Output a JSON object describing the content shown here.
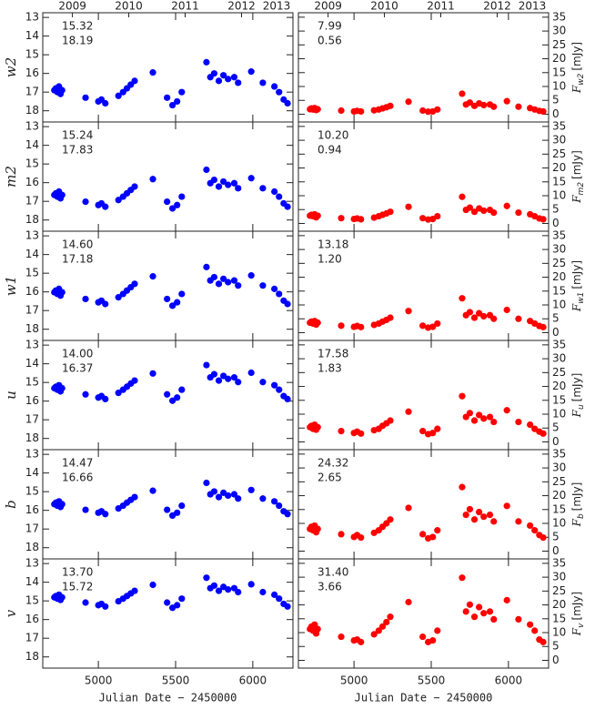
{
  "chart_data": [
    {
      "type": "scatter",
      "ylabel": "w2",
      "annotations": [
        "15.32",
        "18.19"
      ],
      "color": "#0000ff",
      "x2ticks": [
        {
          "value": 4832,
          "label": "2009"
        },
        {
          "value": 5197,
          "label": "2010"
        },
        {
          "value": 5562,
          "label": "2011"
        },
        {
          "value": 5927,
          "label": "2012"
        },
        {
          "value": 6293,
          "label": "2013"
        }
      ],
      "xlim": [
        4640,
        6260
      ],
      "xticks": [
        5000,
        5500,
        6000
      ],
      "ylim": [
        18.6,
        12.75
      ],
      "yticks": [
        13,
        14,
        15,
        16,
        17,
        18
      ],
      "x": [
        4715,
        4725,
        4735,
        4745,
        4755,
        4765,
        4917,
        5000,
        5020,
        5045,
        5130,
        5160,
        5185,
        5210,
        5235,
        5353,
        5445,
        5480,
        5510,
        5540,
        5700,
        5725,
        5750,
        5780,
        5810,
        5840,
        5880,
        5905,
        5990,
        6065,
        6140,
        6170,
        6200,
        6225
      ],
      "values": [
        16.9,
        16.8,
        17.0,
        16.7,
        17.1,
        16.9,
        17.3,
        17.5,
        17.4,
        17.6,
        17.2,
        17.0,
        16.8,
        16.6,
        16.4,
        15.95,
        17.3,
        17.7,
        17.5,
        17.0,
        15.4,
        16.2,
        16.0,
        16.4,
        16.1,
        16.3,
        16.2,
        16.5,
        15.9,
        16.5,
        16.7,
        17.0,
        17.4,
        17.6
      ]
    },
    {
      "type": "scatter",
      "ylabel": {
        "symbol": "F",
        "subscript": "w2",
        "unit": "[mJy]"
      },
      "annotations": [
        "7.99",
        "0.56"
      ],
      "color": "#ff0000",
      "x2ticks": [
        {
          "value": 4832,
          "label": "2009"
        },
        {
          "value": 5197,
          "label": "2010"
        },
        {
          "value": 5562,
          "label": "2011"
        },
        {
          "value": 5927,
          "label": "2012"
        },
        {
          "value": 6293,
          "label": "2013"
        }
      ],
      "xlim": [
        4640,
        6260
      ],
      "xticks": [
        5000,
        5500,
        6000
      ],
      "ylim": [
        -2.8,
        36.6
      ],
      "yticks": [
        0,
        5,
        10,
        15,
        20,
        25,
        30,
        35
      ],
      "x": [
        4715,
        4725,
        4735,
        4745,
        4755,
        4765,
        4917,
        5000,
        5020,
        5045,
        5130,
        5160,
        5185,
        5210,
        5235,
        5353,
        5445,
        5480,
        5510,
        5540,
        5700,
        5725,
        5750,
        5780,
        5810,
        5840,
        5880,
        5905,
        5990,
        6065,
        6140,
        6170,
        6200,
        6225
      ],
      "values": [
        1.8,
        2.1,
        1.7,
        2.2,
        1.5,
        1.8,
        1.3,
        1.0,
        1.2,
        1.0,
        1.4,
        1.7,
        2.1,
        2.5,
        3.0,
        4.5,
        1.3,
        0.9,
        1.0,
        1.7,
        7.4,
        3.5,
        4.2,
        3.0,
        3.9,
        3.3,
        3.5,
        2.7,
        4.7,
        2.7,
        2.2,
        1.7,
        1.2,
        1.0
      ]
    },
    {
      "type": "scatter",
      "ylabel": "m2",
      "annotations": [
        "15.24",
        "17.83"
      ],
      "color": "#0000ff",
      "xlim": [
        4640,
        6260
      ],
      "xticks": [
        5000,
        5500,
        6000
      ],
      "ylim": [
        18.6,
        12.75
      ],
      "yticks": [
        13,
        14,
        15,
        16,
        17,
        18
      ],
      "x": [
        4715,
        4725,
        4735,
        4745,
        4755,
        4765,
        4917,
        5000,
        5020,
        5045,
        5130,
        5160,
        5185,
        5210,
        5235,
        5353,
        5445,
        5480,
        5510,
        5540,
        5700,
        5725,
        5750,
        5780,
        5810,
        5840,
        5880,
        5905,
        5990,
        6065,
        6140,
        6170,
        6200,
        6225
      ],
      "values": [
        16.66,
        16.57,
        16.75,
        16.48,
        16.84,
        16.66,
        17.02,
        17.2,
        17.11,
        17.29,
        16.93,
        16.75,
        16.57,
        16.39,
        16.21,
        15.81,
        17.02,
        17.38,
        17.2,
        16.75,
        15.31,
        16.03,
        15.85,
        16.21,
        15.94,
        16.12,
        16.03,
        16.3,
        15.76,
        16.3,
        16.48,
        16.75,
        17.11,
        17.29
      ]
    },
    {
      "type": "scatter",
      "ylabel": {
        "symbol": "F",
        "subscript": "m2",
        "unit": "[mJy]"
      },
      "annotations": [
        "10.20",
        "0.94"
      ],
      "color": "#ff0000",
      "xlim": [
        4640,
        6260
      ],
      "xticks": [
        5000,
        5500,
        6000
      ],
      "ylim": [
        -2.8,
        36.6
      ],
      "yticks": [
        0,
        5,
        10,
        15,
        20,
        25,
        30,
        35
      ],
      "x": [
        4715,
        4725,
        4735,
        4745,
        4755,
        4765,
        4917,
        5000,
        5020,
        5045,
        5130,
        5160,
        5185,
        5210,
        5235,
        5353,
        5445,
        5480,
        5510,
        5540,
        5700,
        5725,
        5750,
        5780,
        5810,
        5840,
        5880,
        5905,
        5990,
        6065,
        6140,
        6170,
        6200,
        6225
      ],
      "values": [
        2.8,
        3.1,
        2.6,
        3.3,
        2.2,
        2.8,
        1.9,
        1.6,
        1.8,
        1.5,
        2.1,
        2.6,
        3.1,
        3.6,
        4.2,
        6.0,
        1.9,
        1.4,
        1.6,
        2.6,
        9.6,
        4.9,
        5.7,
        4.2,
        5.4,
        4.6,
        4.9,
        3.9,
        6.3,
        3.9,
        3.3,
        2.6,
        1.8,
        1.5
      ]
    },
    {
      "type": "scatter",
      "ylabel": "w1",
      "annotations": [
        "14.60",
        "17.18"
      ],
      "color": "#0000ff",
      "xlim": [
        4640,
        6260
      ],
      "xticks": [
        5000,
        5500,
        6000
      ],
      "ylim": [
        18.6,
        12.75
      ],
      "yticks": [
        13,
        14,
        15,
        16,
        17,
        18
      ],
      "x": [
        4715,
        4725,
        4735,
        4745,
        4755,
        4765,
        4917,
        5000,
        5020,
        5045,
        5130,
        5160,
        5185,
        5210,
        5235,
        5353,
        5445,
        5480,
        5510,
        5540,
        5700,
        5725,
        5750,
        5780,
        5810,
        5840,
        5880,
        5905,
        5990,
        6065,
        6140,
        6170,
        6200,
        6225
      ],
      "values": [
        16.02,
        15.93,
        16.11,
        15.84,
        16.2,
        16.02,
        16.38,
        16.56,
        16.47,
        16.65,
        16.29,
        16.11,
        15.93,
        15.75,
        15.57,
        15.17,
        16.38,
        16.74,
        16.56,
        16.11,
        14.67,
        15.39,
        15.21,
        15.57,
        15.3,
        15.48,
        15.39,
        15.66,
        15.12,
        15.66,
        15.84,
        16.11,
        16.47,
        16.65
      ]
    },
    {
      "type": "scatter",
      "ylabel": {
        "symbol": "F",
        "subscript": "w1",
        "unit": "[mJy]"
      },
      "annotations": [
        "13.18",
        "1.20"
      ],
      "color": "#ff0000",
      "xlim": [
        4640,
        6260
      ],
      "xticks": [
        5000,
        5500,
        6000
      ],
      "ylim": [
        -2.8,
        36.6
      ],
      "yticks": [
        0,
        5,
        10,
        15,
        20,
        25,
        30,
        35
      ],
      "x": [
        4715,
        4725,
        4735,
        4745,
        4755,
        4765,
        4917,
        5000,
        5020,
        5045,
        5130,
        5160,
        5185,
        5210,
        5235,
        5353,
        5445,
        5480,
        5510,
        5540,
        5700,
        5725,
        5750,
        5780,
        5810,
        5840,
        5880,
        5905,
        5990,
        6065,
        6140,
        6170,
        6200,
        6225
      ],
      "values": [
        3.6,
        4.0,
        3.3,
        4.2,
        2.9,
        3.6,
        2.5,
        2.1,
        2.4,
        2.0,
        2.8,
        3.3,
        4.0,
        4.6,
        5.4,
        7.8,
        2.5,
        1.8,
        2.1,
        3.3,
        12.4,
        6.3,
        7.4,
        5.4,
        7.0,
        5.9,
        6.3,
        5.0,
        8.2,
        5.0,
        4.2,
        3.3,
        2.4,
        2.0
      ]
    },
    {
      "type": "scatter",
      "ylabel": "u",
      "annotations": [
        "14.00",
        "16.37"
      ],
      "color": "#0000ff",
      "xlim": [
        4640,
        6260
      ],
      "xticks": [
        5000,
        5500,
        6000
      ],
      "ylim": [
        18.6,
        12.75
      ],
      "yticks": [
        13,
        14,
        15,
        16,
        17,
        18
      ],
      "x": [
        4715,
        4725,
        4735,
        4745,
        4755,
        4765,
        4917,
        5000,
        5020,
        5045,
        5130,
        5160,
        5185,
        5210,
        5235,
        5353,
        5445,
        5480,
        5510,
        5540,
        5700,
        5725,
        5750,
        5780,
        5810,
        5840,
        5880,
        5905,
        5990,
        6065,
        6140,
        6170,
        6200,
        6225
      ],
      "values": [
        15.31,
        15.23,
        15.39,
        15.15,
        15.48,
        15.31,
        15.64,
        15.81,
        15.73,
        15.89,
        15.56,
        15.39,
        15.23,
        15.06,
        14.9,
        14.52,
        15.64,
        15.98,
        15.81,
        15.39,
        14.07,
        14.73,
        14.56,
        14.9,
        14.65,
        14.81,
        14.73,
        14.98,
        14.48,
        14.98,
        15.15,
        15.39,
        15.73,
        15.89
      ]
    },
    {
      "type": "scatter",
      "ylabel": {
        "symbol": "F",
        "subscript": "u",
        "unit": "[mJy]"
      },
      "annotations": [
        "17.58",
        "1.83"
      ],
      "color": "#ff0000",
      "xlim": [
        4640,
        6260
      ],
      "xticks": [
        5000,
        5500,
        6000
      ],
      "ylim": [
        -2.8,
        36.6
      ],
      "yticks": [
        0,
        5,
        10,
        15,
        20,
        25,
        30,
        35
      ],
      "x": [
        4715,
        4725,
        4735,
        4745,
        4755,
        4765,
        4917,
        5000,
        5020,
        5045,
        5130,
        5160,
        5185,
        5210,
        5235,
        5353,
        5445,
        5480,
        5510,
        5540,
        5700,
        5725,
        5750,
        5780,
        5810,
        5840,
        5880,
        5905,
        5990,
        6065,
        6140,
        6170,
        6200,
        6225
      ],
      "values": [
        5.3,
        5.8,
        4.7,
        6.2,
        4.4,
        5.3,
        3.9,
        3.2,
        3.7,
        3.0,
        4.2,
        4.7,
        5.8,
        6.7,
        7.7,
        10.9,
        3.9,
        2.8,
        3.2,
        4.7,
        16.5,
        9.0,
        10.4,
        7.7,
        9.7,
        8.4,
        9.0,
        7.2,
        11.4,
        7.2,
        6.2,
        4.7,
        3.7,
        3.0
      ]
    },
    {
      "type": "scatter",
      "ylabel": "b",
      "annotations": [
        "14.47",
        "16.66"
      ],
      "color": "#0000ff",
      "xlim": [
        4640,
        6260
      ],
      "xticks": [
        5000,
        5500,
        6000
      ],
      "ylim": [
        18.6,
        12.75
      ],
      "yticks": [
        13,
        14,
        15,
        16,
        17,
        18
      ],
      "x": [
        4715,
        4725,
        4735,
        4745,
        4755,
        4765,
        4917,
        5000,
        5020,
        5045,
        5130,
        5160,
        5185,
        5210,
        5235,
        5353,
        5445,
        5480,
        5510,
        5540,
        5700,
        5725,
        5750,
        5780,
        5810,
        5840,
        5880,
        5905,
        5990,
        6065,
        6140,
        6170,
        6200,
        6225
      ],
      "values": [
        15.67,
        15.59,
        15.75,
        15.52,
        15.82,
        15.67,
        15.97,
        16.13,
        16.05,
        16.2,
        15.9,
        15.75,
        15.59,
        15.44,
        15.29,
        14.95,
        15.97,
        16.28,
        16.13,
        15.75,
        14.53,
        15.14,
        14.99,
        15.29,
        15.06,
        15.21,
        15.14,
        15.37,
        14.91,
        15.37,
        15.52,
        15.75,
        16.05,
        16.2
      ]
    },
    {
      "type": "scatter",
      "ylabel": {
        "symbol": "F",
        "subscript": "b",
        "unit": "[mJy]"
      },
      "annotations": [
        "24.32",
        "2.65"
      ],
      "color": "#ff0000",
      "xlim": [
        4640,
        6260
      ],
      "xticks": [
        5000,
        5500,
        6000
      ],
      "ylim": [
        -2.8,
        36.6
      ],
      "yticks": [
        0,
        5,
        10,
        15,
        20,
        25,
        30,
        35
      ],
      "x": [
        4715,
        4725,
        4735,
        4745,
        4755,
        4765,
        4917,
        5000,
        5020,
        5045,
        5130,
        5160,
        5185,
        5210,
        5235,
        5353,
        5445,
        5480,
        5510,
        5540,
        5700,
        5725,
        5750,
        5780,
        5810,
        5840,
        5880,
        5905,
        5990,
        6065,
        6140,
        6170,
        6200,
        6225
      ],
      "values": [
        8.0,
        8.8,
        7.5,
        9.2,
        6.8,
        8.0,
        6.1,
        5.1,
        5.8,
        4.9,
        6.6,
        7.5,
        8.8,
        10.0,
        11.4,
        15.6,
        6.1,
        4.6,
        5.1,
        7.5,
        23.1,
        13.1,
        15.1,
        11.4,
        14.1,
        12.4,
        13.1,
        10.7,
        16.3,
        10.7,
        9.2,
        7.5,
        5.8,
        4.9
      ]
    },
    {
      "type": "scatter",
      "ylabel": "v",
      "annotations": [
        "13.70",
        "15.72"
      ],
      "color": "#0000ff",
      "xlabel": "Julian Date − 2450000",
      "xlim": [
        4640,
        6260
      ],
      "xticks": [
        5000,
        5500,
        6000
      ],
      "ylim": [
        18.6,
        12.75
      ],
      "yticks": [
        13,
        14,
        15,
        16,
        17,
        18
      ],
      "x": [
        4715,
        4725,
        4735,
        4745,
        4755,
        4765,
        4917,
        5000,
        5020,
        5045,
        5130,
        5160,
        5185,
        5210,
        5235,
        5353,
        5445,
        5480,
        5510,
        5540,
        5700,
        5725,
        5750,
        5780,
        5810,
        5840,
        5880,
        5905,
        5990,
        6065,
        6140,
        6170,
        6200,
        6225
      ],
      "values": [
        14.81,
        14.74,
        14.88,
        14.67,
        14.95,
        14.81,
        15.09,
        15.23,
        15.16,
        15.3,
        15.02,
        14.88,
        14.74,
        14.6,
        14.46,
        14.14,
        15.09,
        15.37,
        15.23,
        14.88,
        13.76,
        14.32,
        14.18,
        14.46,
        14.25,
        14.39,
        14.32,
        14.53,
        14.11,
        14.53,
        14.67,
        14.88,
        15.16,
        15.3
      ]
    },
    {
      "type": "scatter",
      "ylabel": {
        "symbol": "F",
        "subscript": "v",
        "unit": "[mJy]"
      },
      "annotations": [
        "31.40",
        "3.66"
      ],
      "color": "#ff0000",
      "xlabel": "Julian Date − 2450000",
      "xlim": [
        4640,
        6260
      ],
      "xticks": [
        5000,
        5500,
        6000
      ],
      "ylim": [
        -2.8,
        36.6
      ],
      "yticks": [
        0,
        5,
        10,
        15,
        20,
        25,
        30,
        35
      ],
      "x": [
        4715,
        4725,
        4735,
        4745,
        4755,
        4765,
        4917,
        5000,
        5020,
        5045,
        5130,
        5160,
        5185,
        5210,
        5235,
        5353,
        5445,
        5480,
        5510,
        5540,
        5700,
        5725,
        5750,
        5780,
        5810,
        5840,
        5880,
        5905,
        5990,
        6065,
        6140,
        6170,
        6200,
        6225
      ],
      "values": [
        11.3,
        12.2,
        10.7,
        12.9,
        9.7,
        11.3,
        8.5,
        7.2,
        7.5,
        6.6,
        9.4,
        10.7,
        12.2,
        13.8,
        15.7,
        21.0,
        8.5,
        6.6,
        7.2,
        10.7,
        29.8,
        17.6,
        20.1,
        15.7,
        19.2,
        17.0,
        17.6,
        14.8,
        21.7,
        14.8,
        12.9,
        10.7,
        7.5,
        6.6
      ]
    }
  ]
}
